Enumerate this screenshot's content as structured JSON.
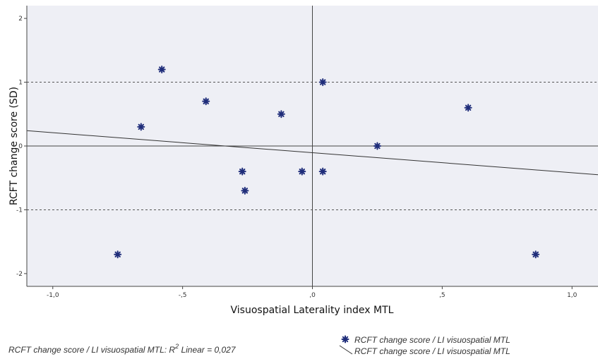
{
  "chart_data": {
    "type": "scatter",
    "xlabel": "Visuospatial Laterality index  MTL",
    "ylabel": "RCFT change score (SD)",
    "xlim": [
      -1.1,
      1.1
    ],
    "ylim": [
      -2.2,
      2.2
    ],
    "x_ticks": [
      -1.0,
      -0.5,
      0.0,
      0.5,
      1.0
    ],
    "x_tick_labels": [
      "-1,0",
      "-,5",
      ",0",
      ",5",
      "1,0"
    ],
    "y_ticks": [
      2,
      1,
      0,
      -1,
      -2
    ],
    "y_tick_labels": [
      "2",
      "1",
      "0",
      "-1",
      "-2"
    ],
    "grid": false,
    "reference_lines": {
      "vertical_solid_x": 0,
      "horizontal_solid_y": 0,
      "horizontal_dashed_y": [
        1,
        -1
      ]
    },
    "series": [
      {
        "name": "RCFT change score / LI visuospatial MTL",
        "marker": "asterisk",
        "color": "#1F2D7A",
        "points": [
          {
            "x": -0.75,
            "y": -1.7
          },
          {
            "x": -0.66,
            "y": 0.3
          },
          {
            "x": -0.58,
            "y": 1.2
          },
          {
            "x": -0.41,
            "y": 0.7
          },
          {
            "x": -0.27,
            "y": -0.4
          },
          {
            "x": -0.26,
            "y": -0.7
          },
          {
            "x": -0.12,
            "y": 0.5
          },
          {
            "x": -0.04,
            "y": -0.4
          },
          {
            "x": 0.04,
            "y": 1.0
          },
          {
            "x": 0.04,
            "y": -0.4
          },
          {
            "x": 0.25,
            "y": 0.0
          },
          {
            "x": 0.6,
            "y": 0.6
          },
          {
            "x": 0.86,
            "y": -1.7
          }
        ]
      }
    ],
    "fit_line": {
      "name": "RCFT change score / LI visuospatial MTL",
      "type": "linear",
      "color": "#333333",
      "x_start": -1.1,
      "y_start": 0.24,
      "x_end": 1.1,
      "y_end": -0.45
    },
    "footnote": {
      "prefix": "RCFT change score / LI visuospatial MTL: R",
      "sup": "2",
      "suffix": " Linear = 0,027"
    },
    "legend": {
      "placement": "bottom-right",
      "entries": [
        {
          "label": "RCFT change score / LI visuospatial MTL",
          "symbol": "asterisk"
        },
        {
          "label": "RCFT change score / LI visuospatial MTL",
          "symbol": "line"
        }
      ]
    },
    "plot_background": "#EEEFF5"
  }
}
